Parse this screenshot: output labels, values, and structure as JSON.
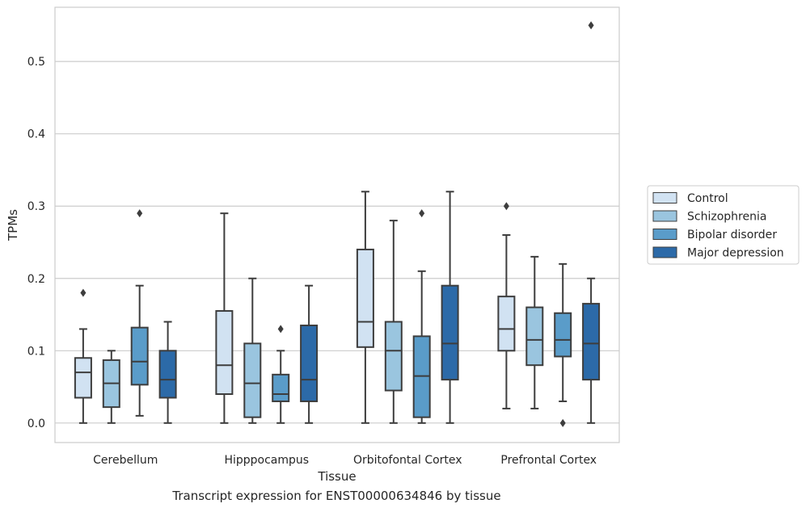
{
  "chart_data": {
    "type": "box",
    "caption": "Transcript expression for ENST00000634846 by tissue",
    "xlabel": "Tissue",
    "ylabel": "TPMs",
    "ylim": [
      -0.027,
      0.575
    ],
    "yticks": [
      0.0,
      0.1,
      0.2,
      0.3,
      0.4,
      0.5
    ],
    "ytick_labels": [
      "0.0",
      "0.1",
      "0.2",
      "0.3",
      "0.4",
      "0.5"
    ],
    "grid": "horizontal",
    "legend_position": "right",
    "categories": [
      "Cerebellum",
      "Hipppocampus",
      "Orbitofontal Cortex",
      "Prefrontal Cortex"
    ],
    "series": [
      {
        "name": "Control",
        "color": "#d1e2f2",
        "boxes": [
          {
            "whislo": 0.0,
            "q1": 0.035,
            "med": 0.07,
            "q3": 0.09,
            "whishi": 0.13,
            "fliers": [
              0.18
            ]
          },
          {
            "whislo": 0.0,
            "q1": 0.04,
            "med": 0.08,
            "q3": 0.155,
            "whishi": 0.29,
            "fliers": []
          },
          {
            "whislo": 0.0,
            "q1": 0.105,
            "med": 0.14,
            "q3": 0.24,
            "whishi": 0.32,
            "fliers": []
          },
          {
            "whislo": 0.02,
            "q1": 0.1,
            "med": 0.13,
            "q3": 0.175,
            "whishi": 0.26,
            "fliers": [
              0.3
            ]
          }
        ]
      },
      {
        "name": "Schizophrenia",
        "color": "#9ac5df",
        "boxes": [
          {
            "whislo": 0.0,
            "q1": 0.022,
            "med": 0.055,
            "q3": 0.087,
            "whishi": 0.1,
            "fliers": []
          },
          {
            "whislo": 0.0,
            "q1": 0.008,
            "med": 0.055,
            "q3": 0.11,
            "whishi": 0.2,
            "fliers": []
          },
          {
            "whislo": 0.0,
            "q1": 0.045,
            "med": 0.1,
            "q3": 0.14,
            "whishi": 0.28,
            "fliers": []
          },
          {
            "whislo": 0.02,
            "q1": 0.08,
            "med": 0.115,
            "q3": 0.16,
            "whishi": 0.23,
            "fliers": []
          }
        ]
      },
      {
        "name": "Bipolar disorder",
        "color": "#5a9cc9",
        "boxes": [
          {
            "whislo": 0.01,
            "q1": 0.053,
            "med": 0.085,
            "q3": 0.132,
            "whishi": 0.19,
            "fliers": [
              0.29
            ]
          },
          {
            "whislo": 0.0,
            "q1": 0.03,
            "med": 0.04,
            "q3": 0.067,
            "whishi": 0.1,
            "fliers": [
              0.13
            ]
          },
          {
            "whislo": 0.0,
            "q1": 0.008,
            "med": 0.065,
            "q3": 0.12,
            "whishi": 0.21,
            "fliers": [
              0.29
            ]
          },
          {
            "whislo": 0.03,
            "q1": 0.092,
            "med": 0.115,
            "q3": 0.152,
            "whishi": 0.22,
            "fliers": [
              0.0
            ]
          }
        ]
      },
      {
        "name": "Major depression",
        "color": "#2c6aa8",
        "boxes": [
          {
            "whislo": 0.0,
            "q1": 0.035,
            "med": 0.06,
            "q3": 0.1,
            "whishi": 0.14,
            "fliers": []
          },
          {
            "whislo": 0.0,
            "q1": 0.03,
            "med": 0.06,
            "q3": 0.135,
            "whishi": 0.19,
            "fliers": []
          },
          {
            "whislo": 0.0,
            "q1": 0.06,
            "med": 0.11,
            "q3": 0.19,
            "whishi": 0.32,
            "fliers": []
          },
          {
            "whislo": 0.0,
            "q1": 0.06,
            "med": 0.11,
            "q3": 0.165,
            "whishi": 0.2,
            "fliers": [
              0.55
            ]
          }
        ]
      }
    ]
  },
  "colors": {
    "grid": "#cccccc",
    "axes_edge": "#cccccc",
    "box_edge": "#3d3d3d",
    "text": "#262626"
  }
}
